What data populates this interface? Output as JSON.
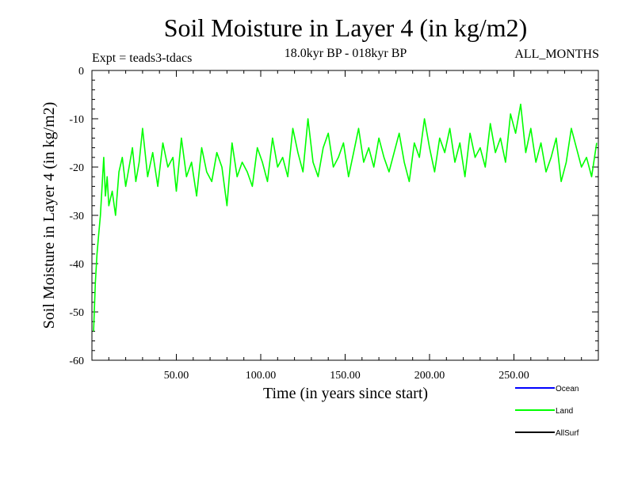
{
  "chart_data": {
    "type": "line",
    "title": "Soil Moisture in Layer 4 (in kg/m2)",
    "subtitle_left": "Expt = teads3-tdacs",
    "subtitle_center": "18.0kyr BP - 018kyr BP",
    "subtitle_right": "ALL_MONTHS",
    "xlabel": "Time (in years since start)",
    "ylabel": "Soil Moisture in Layer 4 (in kg/m2)",
    "xlim": [
      0,
      300
    ],
    "ylim": [
      -60,
      0
    ],
    "x_ticks": [
      50,
      100,
      150,
      200,
      250
    ],
    "x_tick_labels": [
      "50.00",
      "100.00",
      "150.00",
      "200.00",
      "250.00"
    ],
    "y_ticks": [
      0,
      -10,
      -20,
      -30,
      -40,
      -50,
      -60
    ],
    "y_tick_labels": [
      "0",
      "-10",
      "-20",
      "-30",
      "-40",
      "-50",
      "-60"
    ],
    "legend": [
      {
        "name": "Ocean",
        "color": "#0000ff"
      },
      {
        "name": "Land",
        "color": "#00ff00"
      },
      {
        "name": "AllSurf",
        "color": "#000000"
      }
    ],
    "series": [
      {
        "name": "Land",
        "color": "#00ff00",
        "x": [
          1,
          2,
          3,
          4,
          5,
          6,
          7,
          8,
          9,
          10,
          12,
          14,
          16,
          18,
          20,
          22,
          24,
          26,
          28,
          30,
          33,
          36,
          39,
          42,
          45,
          48,
          50,
          53,
          56,
          59,
          62,
          65,
          68,
          71,
          74,
          77,
          80,
          83,
          86,
          89,
          92,
          95,
          98,
          101,
          104,
          107,
          110,
          113,
          116,
          119,
          122,
          125,
          128,
          131,
          134,
          137,
          140,
          143,
          146,
          149,
          152,
          155,
          158,
          161,
          164,
          167,
          170,
          173,
          176,
          179,
          182,
          185,
          188,
          191,
          194,
          197,
          200,
          203,
          206,
          209,
          212,
          215,
          218,
          221,
          224,
          227,
          230,
          233,
          236,
          239,
          242,
          245,
          248,
          251,
          254,
          257,
          260,
          263,
          266,
          269,
          272,
          275,
          278,
          281,
          284,
          287,
          290,
          293,
          296,
          299
        ],
        "y": [
          -54,
          -44,
          -38,
          -34,
          -30,
          -24,
          -18,
          -26,
          -22,
          -28,
          -25,
          -30,
          -21,
          -18,
          -24,
          -20,
          -16,
          -23,
          -19,
          -12,
          -22,
          -17,
          -24,
          -15,
          -20,
          -18,
          -25,
          -14,
          -22,
          -19,
          -26,
          -16,
          -21,
          -23,
          -17,
          -20,
          -28,
          -15,
          -22,
          -19,
          -21,
          -24,
          -16,
          -19,
          -23,
          -14,
          -20,
          -18,
          -22,
          -12,
          -17,
          -21,
          -10,
          -19,
          -22,
          -16,
          -13,
          -20,
          -18,
          -15,
          -22,
          -17,
          -12,
          -19,
          -16,
          -20,
          -14,
          -18,
          -21,
          -17,
          -13,
          -19,
          -23,
          -15,
          -18,
          -10,
          -16,
          -21,
          -14,
          -17,
          -12,
          -19,
          -15,
          -22,
          -13,
          -18,
          -16,
          -20,
          -11,
          -17,
          -14,
          -19,
          -9,
          -13,
          -7,
          -17,
          -12,
          -19,
          -15,
          -21,
          -18,
          -14,
          -23,
          -19,
          -12,
          -16,
          -20,
          -18,
          -22,
          -15
        ]
      },
      {
        "name": "Ocean",
        "color": "#0000ff",
        "x": [],
        "y": []
      },
      {
        "name": "AllSurf",
        "color": "#000000",
        "x": [],
        "y": []
      }
    ]
  }
}
